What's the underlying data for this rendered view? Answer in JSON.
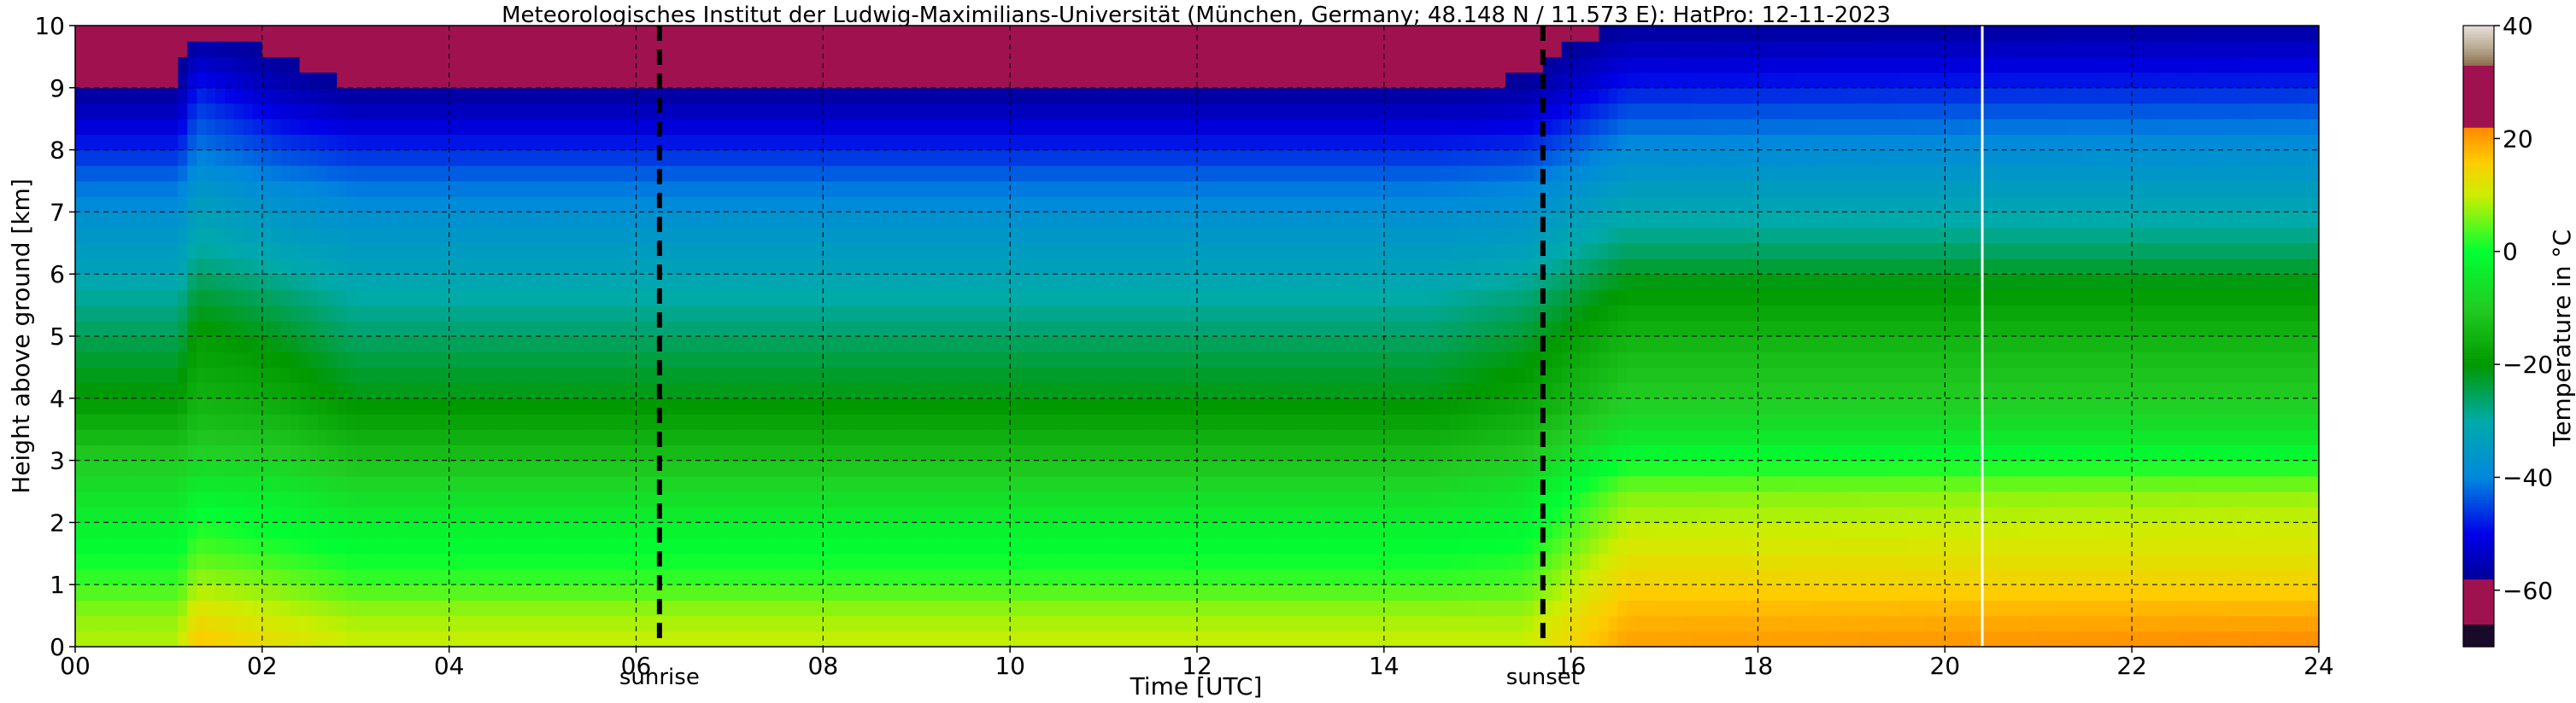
{
  "chart_data": {
    "type": "heatmap",
    "title": "Meteorologisches Institut der Ludwig-Maximilians-Universität (München, Germany; 48.148 N / 11.573 E):    HatPro: 12-11-2023",
    "xlabel": "Time [UTC]",
    "ylabel": "Height above ground [km]",
    "xlim": [
      0,
      24
    ],
    "ylim": [
      0,
      10
    ],
    "x_ticks": [
      "00",
      "02",
      "04",
      "06",
      "08",
      "10",
      "12",
      "14",
      "16",
      "18",
      "20",
      "22",
      "24"
    ],
    "y_ticks": [
      "0",
      "1",
      "2",
      "3",
      "4",
      "5",
      "6",
      "7",
      "8",
      "9",
      "10"
    ],
    "grid": true,
    "grid_style": "dashed",
    "annotations": [
      {
        "label": "sunrise",
        "x": 6.25
      },
      {
        "label": "sunset",
        "x": 15.7
      }
    ],
    "data_gap_x": 20.4,
    "colorbar": {
      "label": "Temperature in °C",
      "range": [
        -70,
        40
      ],
      "ticks": [
        "40",
        "20",
        "0",
        "−20",
        "−40",
        "−60"
      ],
      "tick_values": [
        40,
        20,
        0,
        -20,
        -40,
        -60
      ],
      "colormap": [
        {
          "t": -70,
          "color": "#1a0a2a"
        },
        {
          "t": -66,
          "color": "#1a0a2a"
        },
        {
          "t": -66,
          "color": "#a0124f"
        },
        {
          "t": -58,
          "color": "#a0124f"
        },
        {
          "t": -58,
          "color": "#000099"
        },
        {
          "t": -50,
          "color": "#0000e8"
        },
        {
          "t": -40,
          "color": "#0088dd"
        },
        {
          "t": -30,
          "color": "#00aaaa"
        },
        {
          "t": -20,
          "color": "#009900"
        },
        {
          "t": -10,
          "color": "#22cc22"
        },
        {
          "t": 0,
          "color": "#00ff33"
        },
        {
          "t": 10,
          "color": "#ccee00"
        },
        {
          "t": 16,
          "color": "#ffcc00"
        },
        {
          "t": 22,
          "color": "#ff8800"
        },
        {
          "t": 22,
          "color": "#a0124f"
        },
        {
          "t": 33,
          "color": "#a0124f"
        },
        {
          "t": 33,
          "color": "#8b6f4e"
        },
        {
          "t": 36,
          "color": "#b8a78f"
        },
        {
          "t": 40,
          "color": "#e6e0d8"
        }
      ]
    },
    "temperature_profile_keyframes": {
      "heights_km": [
        0,
        0.5,
        1,
        1.5,
        2,
        2.5,
        3,
        3.5,
        4,
        4.5,
        5,
        5.5,
        6,
        6.5,
        7,
        7.5,
        8,
        8.5,
        9,
        9.5,
        10
      ],
      "profiles": [
        {
          "x": 0.0,
          "t": [
            9,
            7,
            3,
            0,
            -3,
            -6,
            -10,
            -15,
            -20,
            -22,
            -25,
            -28,
            -32,
            -35,
            -38,
            -42,
            -47,
            -53,
            -58,
            -60,
            -62
          ]
        },
        {
          "x": 1.1,
          "t": [
            9,
            7,
            3,
            0,
            -3,
            -6,
            -10,
            -15,
            -20,
            -22,
            -25,
            -28,
            -32,
            -35,
            -38,
            -42,
            -47,
            -53,
            -58,
            -60,
            -62
          ]
        },
        {
          "x": 1.3,
          "t": [
            17,
            13,
            8,
            4,
            1,
            -3,
            -8,
            -12,
            -15,
            -17,
            -19,
            -22,
            -26,
            -30,
            -33,
            -37,
            -41,
            -44,
            -48,
            -54,
            -60
          ]
        },
        {
          "x": 2.2,
          "t": [
            13,
            10,
            6,
            2,
            -1,
            -4,
            -9,
            -13,
            -17,
            -19,
            -22,
            -25,
            -29,
            -33,
            -36,
            -40,
            -45,
            -50,
            -55,
            -58,
            -60
          ]
        },
        {
          "x": 3.0,
          "t": [
            10,
            8,
            3,
            0,
            -3,
            -7,
            -12,
            -17,
            -21,
            -23,
            -26,
            -29,
            -32,
            -35,
            -38,
            -42,
            -47,
            -53,
            -58,
            -61,
            -62
          ]
        },
        {
          "x": 14.5,
          "t": [
            10,
            8,
            3,
            0,
            -3,
            -7,
            -12,
            -17,
            -21,
            -23,
            -26,
            -29,
            -32,
            -35,
            -38,
            -42,
            -47,
            -53,
            -58,
            -61,
            -62
          ]
        },
        {
          "x": 15.5,
          "t": [
            10,
            8,
            4,
            1,
            -2,
            -5,
            -10,
            -14,
            -18,
            -20,
            -23,
            -26,
            -30,
            -34,
            -37,
            -41,
            -46,
            -52,
            -57,
            -60,
            -62
          ]
        },
        {
          "x": 16.6,
          "t": [
            20,
            18,
            15,
            12,
            9,
            6,
            0,
            -6,
            -10,
            -12,
            -15,
            -18,
            -22,
            -27,
            -31,
            -35,
            -39,
            -43,
            -48,
            -53,
            -58
          ]
        },
        {
          "x": 24.0,
          "t": [
            22,
            19,
            15,
            12,
            10,
            7,
            0,
            -6,
            -10,
            -12,
            -15,
            -18,
            -22,
            -27,
            -31,
            -35,
            -38,
            -42,
            -47,
            -52,
            -57
          ]
        }
      ]
    }
  }
}
